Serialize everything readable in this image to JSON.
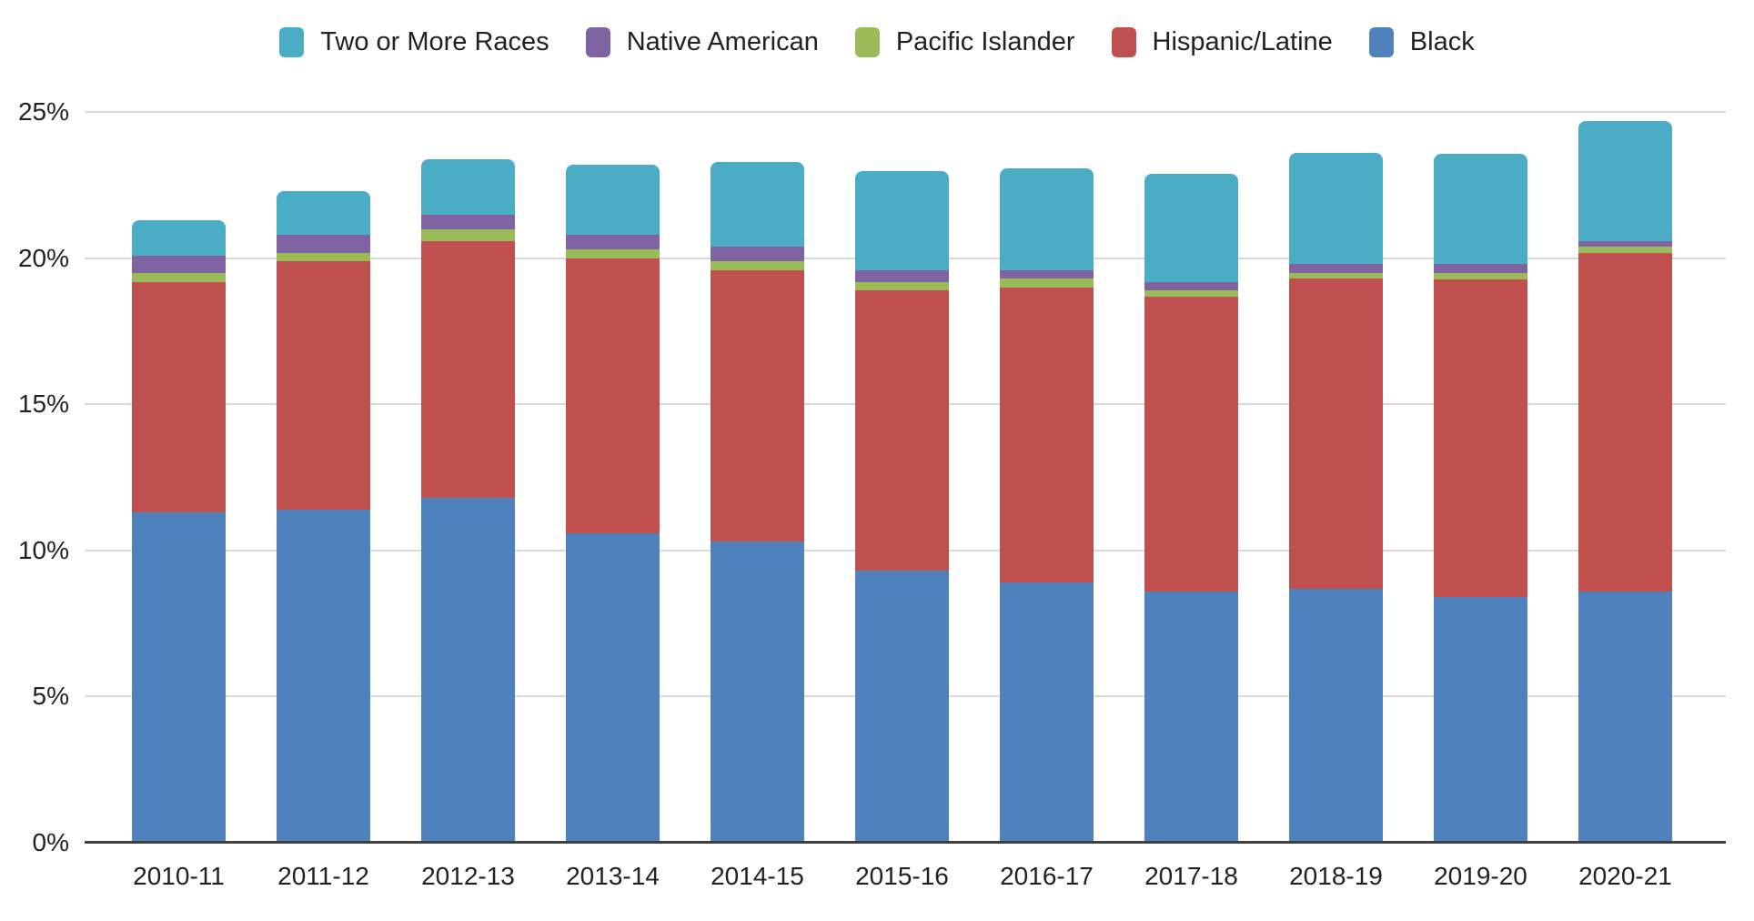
{
  "chart_data": {
    "type": "bar",
    "stacked": true,
    "title": "",
    "categories": [
      "2010-11",
      "2011-12",
      "2012-13",
      "2013-14",
      "2014-15",
      "2015-16",
      "2016-17",
      "2017-18",
      "2018-19",
      "2019-20",
      "2020-21"
    ],
    "series": [
      {
        "name": "Black",
        "color": "#4f81bd",
        "values": [
          11.3,
          11.4,
          11.8,
          10.6,
          10.3,
          9.3,
          8.9,
          8.6,
          8.7,
          8.4,
          8.6
        ]
      },
      {
        "name": "Hispanic/Latine",
        "color": "#c0504d",
        "values": [
          7.9,
          8.5,
          8.8,
          9.4,
          9.3,
          9.6,
          10.1,
          10.1,
          10.6,
          10.9,
          11.6
        ]
      },
      {
        "name": "Pacific Islander",
        "color": "#9bbb59",
        "values": [
          0.3,
          0.3,
          0.4,
          0.3,
          0.3,
          0.3,
          0.3,
          0.2,
          0.2,
          0.2,
          0.2
        ]
      },
      {
        "name": "Native American",
        "color": "#8064a2",
        "values": [
          0.6,
          0.6,
          0.5,
          0.5,
          0.5,
          0.4,
          0.3,
          0.3,
          0.3,
          0.3,
          0.2
        ]
      },
      {
        "name": "Two or More Races",
        "color": "#4bacc6",
        "values": [
          1.2,
          1.5,
          1.9,
          2.4,
          2.9,
          3.4,
          3.5,
          3.7,
          3.8,
          3.8,
          4.1
        ]
      }
    ],
    "totals": [
      21.3,
      22.3,
      23.4,
      23.2,
      23.3,
      23.0,
      23.1,
      22.9,
      23.6,
      23.6,
      24.7
    ],
    "stack_order_bottom_to_top": [
      "Black",
      "Hispanic/Latine",
      "Pacific Islander",
      "Native American",
      "Two or More Races"
    ],
    "legend": [
      "Two or More Races",
      "Native American",
      "Pacific Islander",
      "Hispanic/Latine",
      "Black"
    ],
    "legend_position": "top",
    "unit": "%",
    "xlabel": "",
    "ylabel": "",
    "ylim": [
      0,
      25
    ],
    "grid": true,
    "y_axis": {
      "ticks": [
        {
          "value": 25,
          "label": "25%"
        },
        {
          "value": 20,
          "label": "20%"
        },
        {
          "value": 15,
          "label": "15%"
        },
        {
          "value": 10,
          "label": "10%"
        },
        {
          "value": 5,
          "label": "5%"
        },
        {
          "value": 0,
          "label": "0%"
        }
      ]
    },
    "colors": {
      "background": "#ffffff",
      "text": "#202124",
      "gridline": "#d9d9d9",
      "axis_line": "#3e3e3e"
    }
  }
}
